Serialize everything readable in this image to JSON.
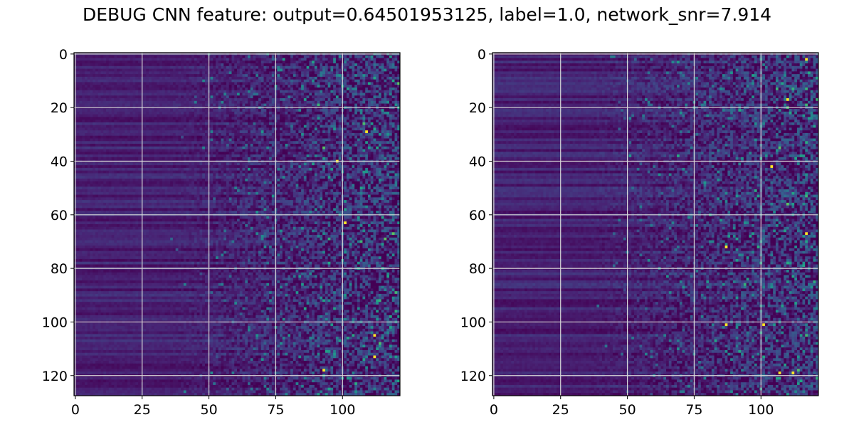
{
  "figure": {
    "title": "DEBUG CNN feature: output=0.64501953125, label=1.0, network_snr=7.914"
  },
  "chart_data": [
    {
      "type": "heatmap",
      "panel": "left",
      "rows": 128,
      "cols": 122,
      "colormap": "viridis",
      "xlim": [
        -0.5,
        121.5
      ],
      "ylim": [
        127.5,
        -0.5
      ],
      "xticks": [
        0,
        25,
        50,
        75,
        100
      ],
      "yticks": [
        0,
        20,
        40,
        60,
        80,
        100,
        120
      ],
      "grid": true,
      "seed": 17,
      "hotspots": [
        [
          29,
          109
        ],
        [
          40,
          98
        ],
        [
          63,
          101
        ],
        [
          105,
          112
        ],
        [
          113,
          112
        ],
        [
          118,
          93
        ]
      ]
    },
    {
      "type": "heatmap",
      "panel": "right",
      "rows": 128,
      "cols": 122,
      "colormap": "viridis",
      "xlim": [
        -0.5,
        121.5
      ],
      "ylim": [
        127.5,
        -0.5
      ],
      "xticks": [
        0,
        25,
        50,
        75,
        100
      ],
      "yticks": [
        0,
        20,
        40,
        60,
        80,
        100,
        120
      ],
      "grid": true,
      "seed": 53,
      "hotspots": [
        [
          2,
          117
        ],
        [
          17,
          110
        ],
        [
          42,
          104
        ],
        [
          67,
          117
        ],
        [
          72,
          87
        ],
        [
          101,
          87
        ],
        [
          101,
          101
        ],
        [
          119,
          107
        ],
        [
          119,
          112
        ]
      ]
    }
  ]
}
